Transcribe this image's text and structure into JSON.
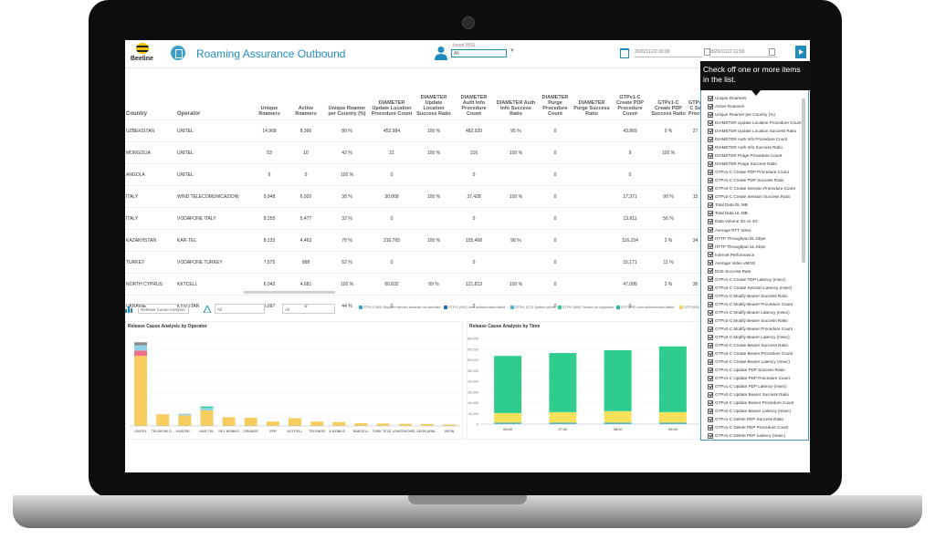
{
  "header": {
    "logo_text": "Beeline",
    "title": "Roaming Assurance Outbound",
    "imsi_label": "Insert IMSI",
    "imsi_value": "All",
    "date_from": "2020/11/22 00:00",
    "date_to": "2020/11/22 12:00"
  },
  "table": {
    "columns": [
      "Country",
      "Operator",
      "Unique Roamers",
      "Active Roamers",
      "Unique Roamer per Country (%)",
      "DIAMETER Update Location Procedure Count",
      "DIAMETER Update Location Success Ratio",
      "DIAMETER Auth Info Procedure Count",
      "DIAMETER Auth Info Success Ratio",
      "DIAMETER Purge Procedure Count",
      "DIAMETER Purge Success Ratio",
      "GTPv1-C Create PDP Procedure Count",
      "GTPv1-C Create PDP Success Ratio",
      "GTPv2-C Se Procedu"
    ],
    "rows": [
      [
        "UZBEKISTAN",
        "UNITEL",
        "14,968",
        "8,396",
        "80 %",
        "452,984",
        "100 %",
        "482,920",
        "95 %",
        "0",
        "",
        "43,869",
        "0 %",
        "27"
      ],
      [
        "MONGOLIA",
        "UNITEL",
        "53",
        "10",
        "42 %",
        "21",
        "100 %",
        "316",
        "100 %",
        "0",
        "",
        "9",
        "100 %",
        ""
      ],
      [
        "ANGOLA",
        "UNITEL",
        "6",
        "0",
        "100 %",
        "0",
        "",
        "0",
        "",
        "0",
        "",
        "0",
        "",
        ""
      ],
      [
        "ITALY",
        "WIND TELECOMUNICAZIONI",
        "9,948",
        "6,920",
        "38 %",
        "30,068",
        "100 %",
        "37,428",
        "100 %",
        "0",
        "",
        "17,371",
        "90 %",
        "15"
      ],
      [
        "ITALY",
        "VODAFONE ITALY",
        "8,255",
        "5,477",
        "32 %",
        "0",
        "",
        "0",
        "",
        "0",
        "",
        "13,811",
        "56 %",
        ""
      ],
      [
        "KAZAKHSTAN",
        "KAR-TEL",
        "8,133",
        "4,463",
        "76 %",
        "216,765",
        "100 %",
        "155,468",
        "98 %",
        "0",
        "",
        "116,154",
        "2 %",
        "34"
      ],
      [
        "TURKEY",
        "VODAFONE TURKEY",
        "7,575",
        "868",
        "62 %",
        "0",
        "",
        "0",
        "",
        "0",
        "",
        "15,171",
        "11 %",
        ""
      ],
      [
        "NORTH CYPRUS",
        "KKTCELL",
        "6,042",
        "4,681",
        "100 %",
        "60,832",
        "99 %",
        "121,813",
        "100 %",
        "0",
        "",
        "47,099",
        "2 %",
        "36"
      ],
      [
        "UKRAINE",
        "KYIVSTAR",
        "5,097",
        "0",
        "44 %",
        "0",
        "",
        "0",
        "",
        "0",
        "",
        "0",
        "",
        ""
      ]
    ]
  },
  "filters": {
    "analysis_select": "Release Cause Analysis",
    "filter2": "All",
    "filter3": "All"
  },
  "legend": [
    {
      "label": "GTPv1 (984) Request rejected because not specified",
      "color": "#3aa0d8"
    },
    {
      "label": "GTPv1 (992) User authentication failed",
      "color": "#2f6fb3"
    },
    {
      "label": "GTPv1 (972) System failure",
      "color": "#53b7c9"
    },
    {
      "label": "GTPv1 (984) Service not supported",
      "color": "#2ecc8f"
    },
    {
      "label": "GTP (599) User authentication failed",
      "color": "#25c39a"
    },
    {
      "label": "GTP (600) Service not supported",
      "color": "#f6d36a"
    }
  ],
  "chart_op": {
    "title": "Release Cause Analysis by Operator",
    "y_ticks": [
      "",
      "",
      "",
      "",
      "",
      "",
      "",
      "",
      ""
    ],
    "categories": [
      "UNITEL",
      "TELEKOM O...",
      "VIVATEK ...",
      "KAR-TEL",
      "SKY MOBILE",
      "ORANGE",
      "SFR",
      "KKTCELL",
      "TELENOR",
      "A MOBILE ...",
      "BAKCELL",
      "TURK TELE...",
      "VIVATEKOMS...",
      "VEON ARM...",
      "VEON"
    ],
    "series": [
      {
        "name": "",
        "color": "#f6cd5f",
        "values": [
          720,
          120,
          110,
          160,
          90,
          85,
          45,
          80,
          45,
          40,
          28,
          25,
          22,
          20,
          15
        ]
      },
      {
        "name": "",
        "color": "#f06f8a",
        "values": [
          55,
          0,
          0,
          0,
          0,
          0,
          0,
          0,
          0,
          0,
          0,
          0,
          0,
          0,
          0
        ]
      },
      {
        "name": "",
        "color": "#8fd1e6",
        "values": [
          55,
          0,
          15,
          25,
          0,
          0,
          0,
          0,
          0,
          0,
          0,
          0,
          0,
          0,
          0
        ]
      },
      {
        "name": "",
        "color": "#2ecc8f",
        "values": [
          0,
          0,
          0,
          15,
          0,
          0,
          0,
          0,
          0,
          0,
          0,
          0,
          0,
          0,
          0
        ]
      },
      {
        "name": "",
        "color": "#8a8a8a",
        "values": [
          30,
          0,
          0,
          0,
          0,
          0,
          0,
          0,
          0,
          0,
          0,
          0,
          0,
          0,
          0
        ]
      }
    ],
    "ymax": 900
  },
  "chart_time": {
    "title": "Release Cause Analysis by Time",
    "y_ticks": [
      "400,000",
      "350,000",
      "300,000",
      "250,000",
      "200,000",
      "150,000",
      "100,000",
      "50,000",
      "0"
    ],
    "categories": [
      "06:00",
      "07:00",
      "08:00",
      "09:00"
    ],
    "series": [
      {
        "name": "",
        "color": "#3ab4c8",
        "values": [
          8000,
          8000,
          8000,
          8000
        ]
      },
      {
        "name": "",
        "color": "#f8e15a",
        "values": [
          50000,
          55000,
          60000,
          55000
        ]
      },
      {
        "name": "",
        "color": "#2ecc8f",
        "values": [
          300000,
          310000,
          320000,
          345000
        ]
      }
    ],
    "ymax": 450000
  },
  "popup": {
    "tooltip": "Check off one or more items in the list.",
    "items": [
      "Unique Roamers",
      "Active Roamers",
      "Unique Roamer per Country (%)",
      "DIAMETER Update Location Procedure Count",
      "DIAMETER Update Location Success Ratio",
      "DIAMETER Auth Info Procedure Count",
      "DIAMETER Auth Info Success Ratio",
      "DIAMETER Purge Procedure Count",
      "DIAMETER Purge Success Ratio",
      "GTPv1-C Create PDP Procedure Count",
      "GTPv1-C Create PDP Success Ratio",
      "GTPv2-C Create Session Procedure Count",
      "GTPv2-C Create Session Success Ratio",
      "Total Data DL MB",
      "Total Data UL MB",
      "Data Volume 3G vs 4G",
      "Average RTT InSec",
      "HTTP Throughput DL Kbps",
      "HTTP Throughput UL Kbps",
      "Internet Performance",
      "Average Video vMOS",
      "DNS Success Rate",
      "GTPv1-C Create PDP Latency (msec)",
      "GTPv2-C Create Session Latency (msec)",
      "GTPv1-C Modify Bearer Success Ratio",
      "GTPv1-C Modify Bearer Procedure Count",
      "GTPv1-C Modify Bearer Latency (msec)",
      "GTPv2-C Modify Bearer Success Ratio",
      "GTPv2-C Modify Bearer Procedure Count",
      "GTPv2-C Modify Bearer Latency (msec)",
      "GTPv2-C Create Bearer Success Ratio",
      "GTPv2-C Create Bearer Procedure Count",
      "GTPv2-C Create Bearer Latency (msec)",
      "GTPv1-C Update PDP Success Ratio",
      "GTPv1-C Update PDP Procedure Count",
      "GTPv1-C Update PDP Latency (msec)",
      "GTPv2-C Update Bearer Success Ratio",
      "GTPv2-C Update Bearer Procedure Count",
      "GTPv2-C Update Bearer Latency (msec)",
      "GTPv1-C Delete PDP Success Ratio",
      "GTPv1-C Delete PDP Procedure Count",
      "GTPv1-C Delete PDP Latency (msec)",
      "GTPv2-C Delete Session Success Ratio",
      "GTPv2-C Delete Session Procedure Count"
    ]
  }
}
